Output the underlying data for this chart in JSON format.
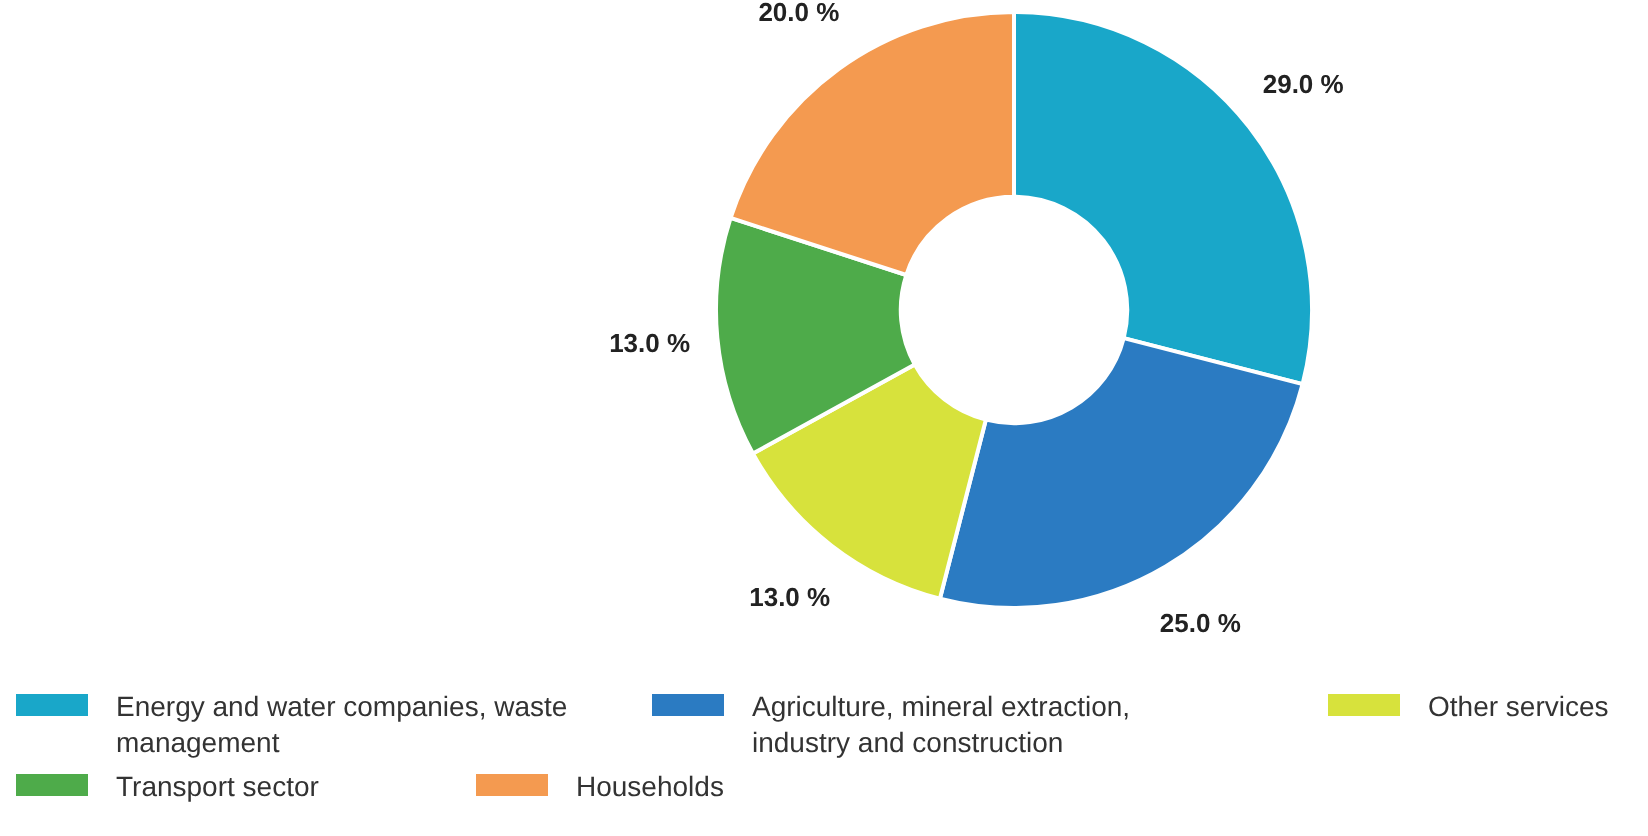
{
  "chart_data": {
    "type": "donut",
    "categories": [
      "Energy and water companies, waste management",
      "Agriculture, mineral extraction, industry and construction",
      "Other services",
      "Transport sector",
      "Households"
    ],
    "values": [
      29,
      25,
      13,
      13,
      20
    ],
    "colors": [
      "#19a7c9",
      "#2b7bc2",
      "#d7e23c",
      "#4eab4a",
      "#f49a50"
    ],
    "value_labels": [
      "29.0 %",
      "25.0 %",
      "13.0 %",
      "13.0 %",
      "20.0 %"
    ],
    "legend": "bottom"
  }
}
